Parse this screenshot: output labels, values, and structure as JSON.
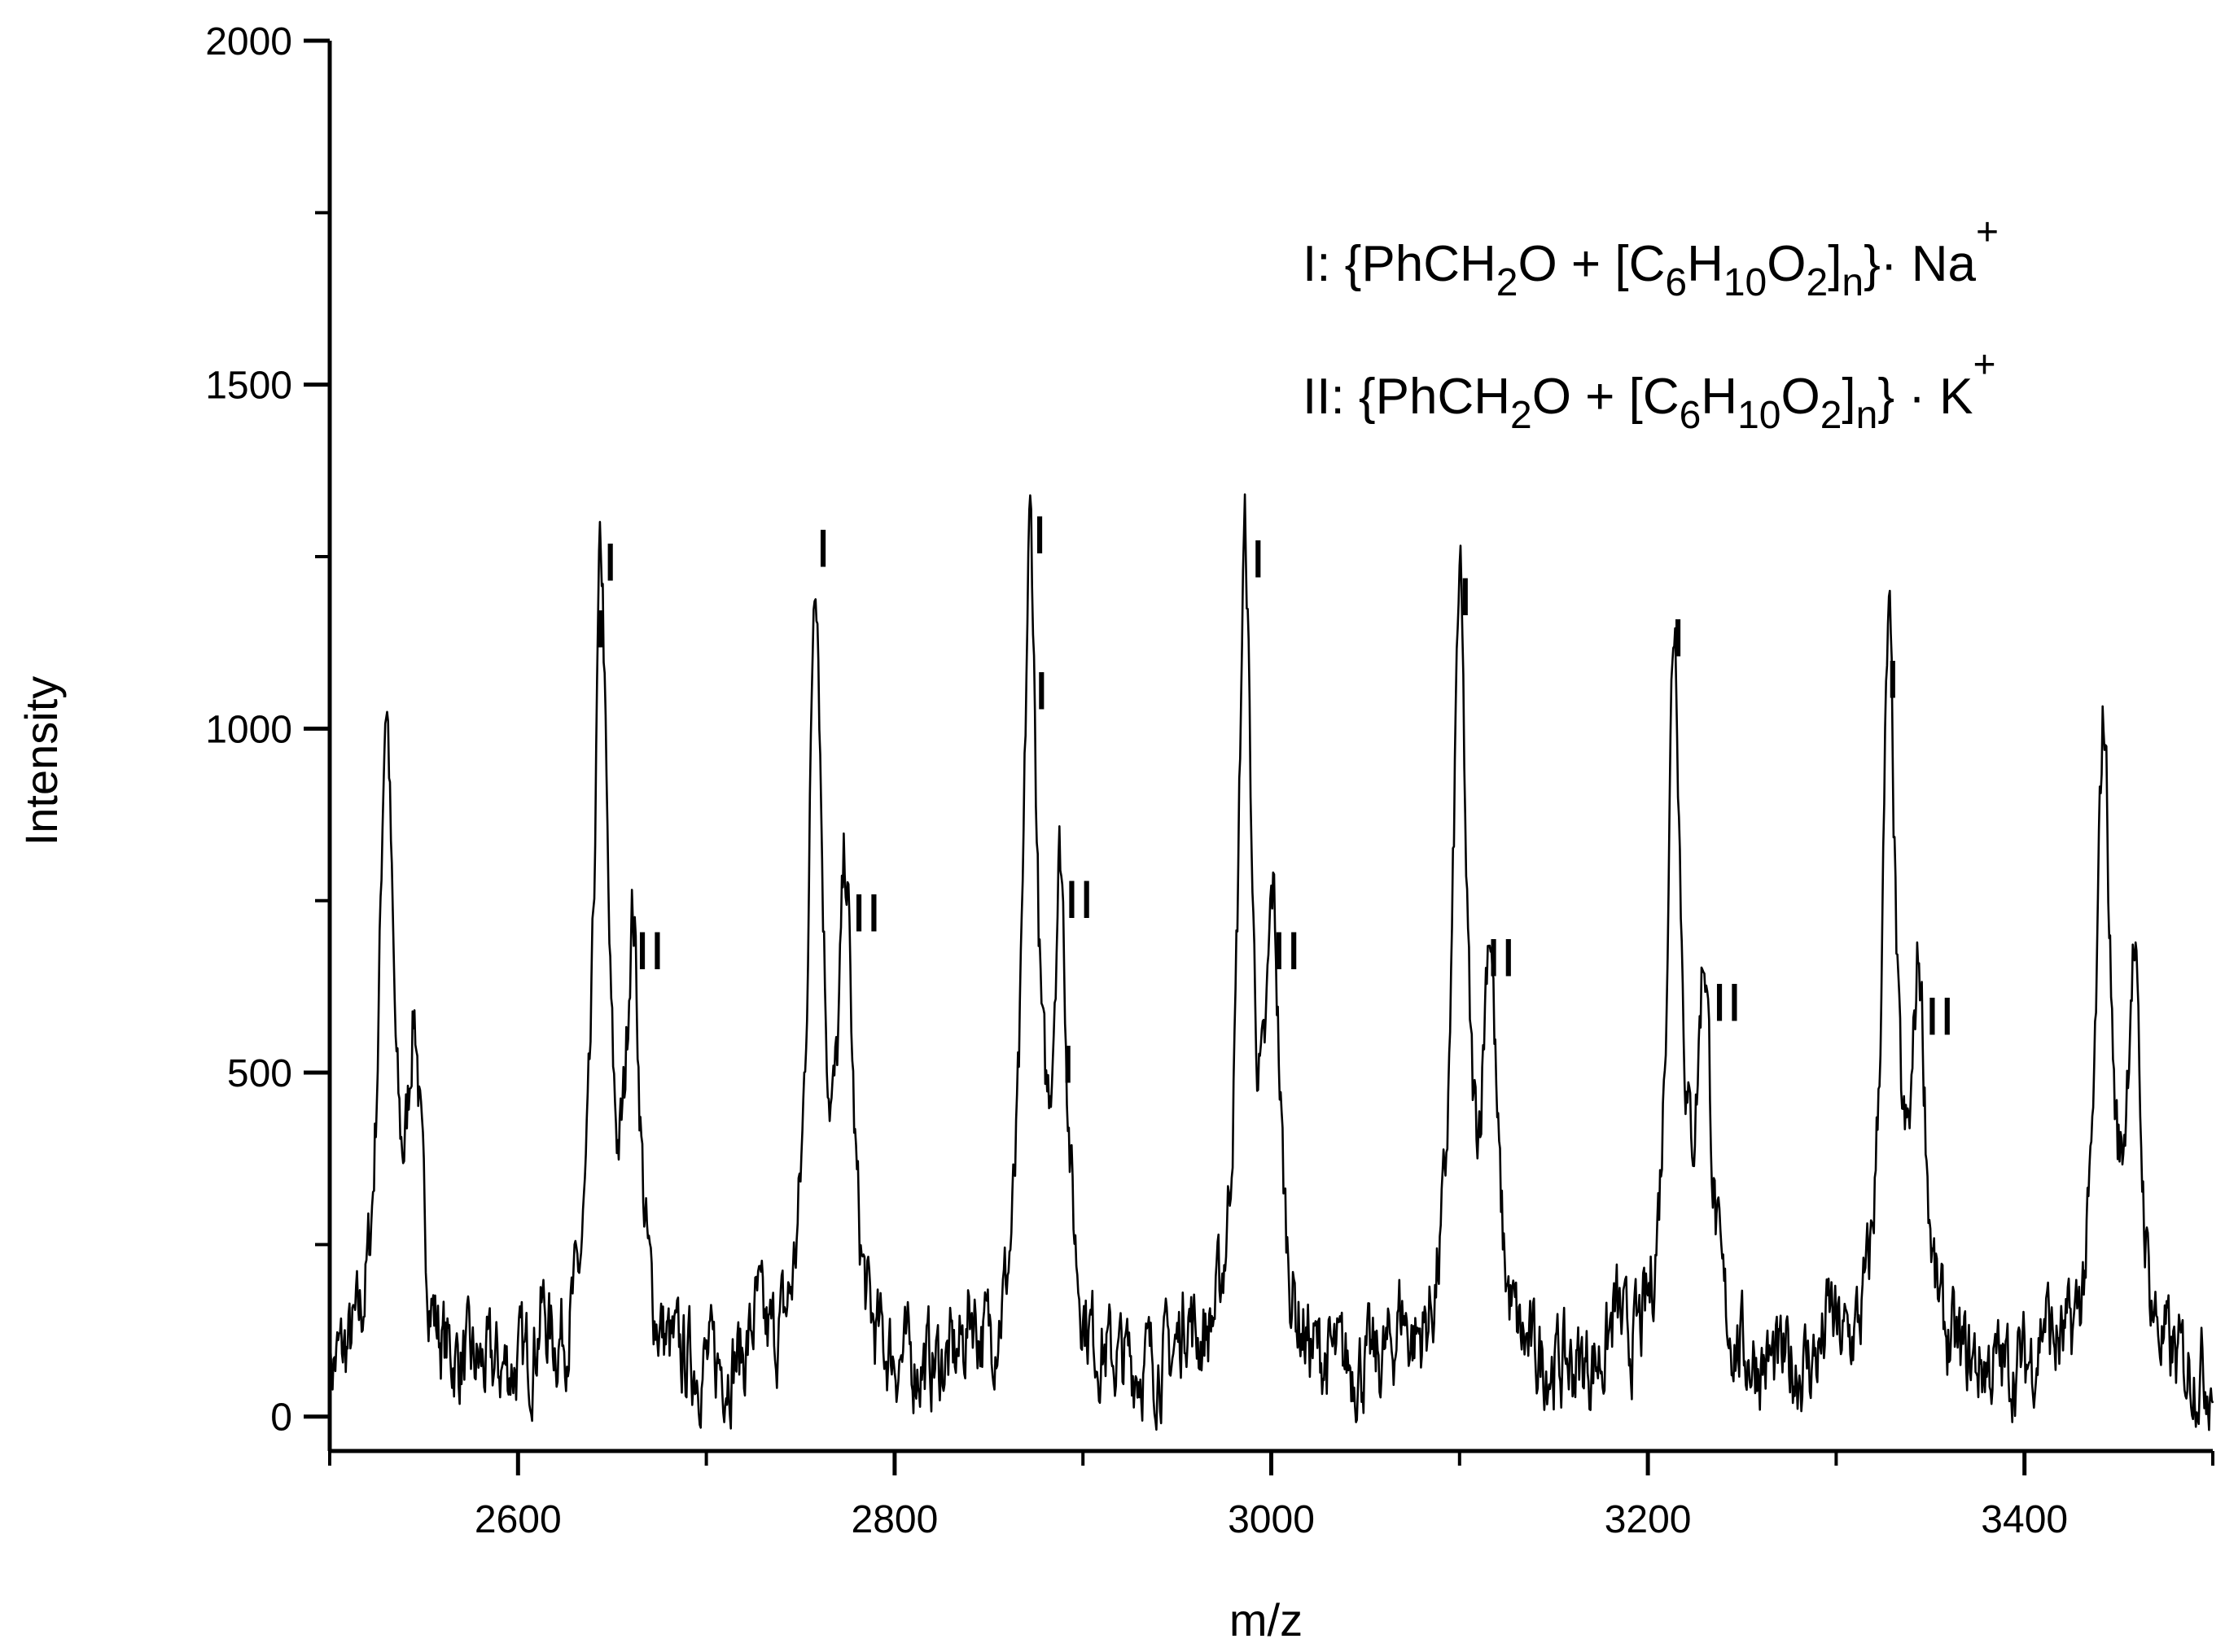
{
  "chart_data": {
    "type": "line",
    "title": "",
    "xlabel": "m/z",
    "ylabel": "Intensity",
    "xlim": [
      2500,
      3500
    ],
    "ylim": [
      -50,
      2000
    ],
    "xticks": [
      2600,
      2800,
      3000,
      3200,
      3400
    ],
    "xtick_labels": [
      "2600",
      "2800",
      "3000",
      "3200",
      "3400"
    ],
    "yticks": [
      0,
      500,
      1000,
      1500,
      2000
    ],
    "ytick_labels": [
      "0",
      "500",
      "1000",
      "1500",
      "2000"
    ],
    "grid": false,
    "legend_position": "top-right",
    "legend": [
      {
        "id": "I",
        "lead": "I: {PhCH",
        "parts": [
          {
            "t": "I: {PhCH",
            "k": "n"
          },
          {
            "t": "2",
            "k": "sub"
          },
          {
            "t": "O + [C",
            "k": "n"
          },
          {
            "t": "6",
            "k": "sub"
          },
          {
            "t": "H",
            "k": "n"
          },
          {
            "t": "10",
            "k": "sub"
          },
          {
            "t": "O",
            "k": "n"
          },
          {
            "t": "2",
            "k": "sub"
          },
          {
            "t": "]",
            "k": "n"
          },
          {
            "t": "n",
            "k": "sub"
          },
          {
            "t": "}· Na",
            "k": "n"
          },
          {
            "t": "+",
            "k": "sup"
          }
        ]
      },
      {
        "id": "II",
        "lead": "II: {PhCH",
        "parts": [
          {
            "t": "II: {PhCH",
            "k": "n"
          },
          {
            "t": "2",
            "k": "sub"
          },
          {
            "t": "O + [C",
            "k": "n"
          },
          {
            "t": "6",
            "k": "sub"
          },
          {
            "t": "H",
            "k": "n"
          },
          {
            "t": "10",
            "k": "sub"
          },
          {
            "t": "O",
            "k": "n"
          },
          {
            "t": "2",
            "k": "sub"
          },
          {
            "t": "]",
            "k": "n"
          },
          {
            "t": "n",
            "k": "sub"
          },
          {
            "t": "} · K",
            "k": "n"
          },
          {
            "t": "+",
            "k": "sup"
          }
        ]
      }
    ],
    "peaks": [
      {
        "x": 2530,
        "y": 960
      },
      {
        "x": 2545,
        "y": 460
      },
      {
        "x": 2644,
        "y": 1150
      },
      {
        "x": 2661,
        "y": 610
      },
      {
        "x": 2758,
        "y": 1150
      },
      {
        "x": 2774,
        "y": 670
      },
      {
        "x": 2872,
        "y": 1190
      },
      {
        "x": 2888,
        "y": 680
      },
      {
        "x": 2986,
        "y": 1170
      },
      {
        "x": 3001,
        "y": 610
      },
      {
        "x": 3100,
        "y": 1110
      },
      {
        "x": 3116,
        "y": 590
      },
      {
        "x": 3214,
        "y": 1070
      },
      {
        "x": 3230,
        "y": 550
      },
      {
        "x": 3328,
        "y": 1040
      },
      {
        "x": 3344,
        "y": 540
      },
      {
        "x": 3442,
        "y": 930
      },
      {
        "x": 3458,
        "y": 560
      }
    ],
    "peak_labels": [
      {
        "text": "I",
        "x": 2649,
        "y": 1215
      },
      {
        "text": "I",
        "x": 2644,
        "y": 1118
      },
      {
        "text": "II",
        "x": 2670,
        "y": 650
      },
      {
        "text": "I",
        "x": 2762,
        "y": 1235
      },
      {
        "text": "II",
        "x": 2785,
        "y": 705
      },
      {
        "text": "I",
        "x": 2877,
        "y": 1255
      },
      {
        "text": "I",
        "x": 2878,
        "y": 1028
      },
      {
        "text": "II",
        "x": 2898,
        "y": 725
      },
      {
        "text": "I",
        "x": 2892,
        "y": 485
      },
      {
        "text": "I",
        "x": 2993,
        "y": 1220
      },
      {
        "text": "II",
        "x": 3008,
        "y": 650
      },
      {
        "text": "I",
        "x": 3103,
        "y": 1165
      },
      {
        "text": "II",
        "x": 3122,
        "y": 640
      },
      {
        "text": "I",
        "x": 3216,
        "y": 1105
      },
      {
        "text": "II",
        "x": 3242,
        "y": 575
      },
      {
        "text": "I",
        "x": 3330,
        "y": 1045
      },
      {
        "text": "II",
        "x": 3355,
        "y": 555
      }
    ]
  }
}
